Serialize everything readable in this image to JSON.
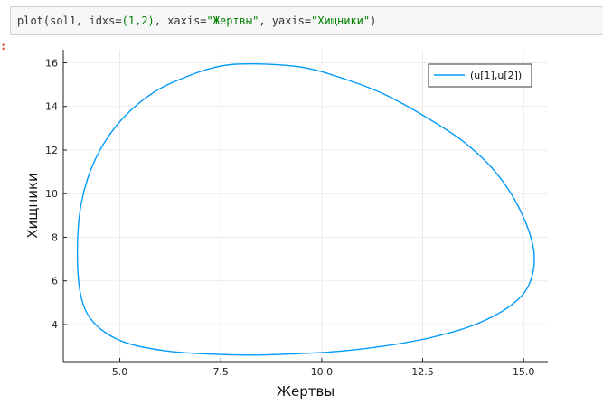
{
  "cell": {
    "in_prompt": "",
    "out_prompt": ":",
    "code_parts": [
      {
        "t": "plot(sol1, idxs=",
        "c": "kw"
      },
      {
        "t": "(1,2)",
        "c": "num"
      },
      {
        "t": ", xaxis=",
        "c": "kw"
      },
      {
        "t": "\"Жертвы\"",
        "c": "num"
      },
      {
        "t": ", yaxis=",
        "c": "kw"
      },
      {
        "t": "\"Хищники\"",
        "c": "num"
      },
      {
        "t": ")",
        "c": "kw"
      }
    ]
  },
  "chart_data": {
    "type": "line",
    "xlabel": "Жертвы",
    "ylabel": "Хищники",
    "x_ticks": [
      5.0,
      7.5,
      10.0,
      12.5,
      15.0
    ],
    "x_tick_labels": [
      "5.0",
      "7.5",
      "10.0",
      "12.5",
      "15.0"
    ],
    "y_ticks": [
      4,
      6,
      8,
      10,
      12,
      14,
      16
    ],
    "y_tick_labels": [
      "4",
      "6",
      "8",
      "10",
      "12",
      "14",
      "16"
    ],
    "xlim": [
      3.6,
      15.6
    ],
    "ylim": [
      2.3,
      16.6
    ],
    "grid": true,
    "legend_position": "top-right",
    "series": [
      {
        "name": "(u[1],u[2])",
        "color": "#009af9",
        "x": [
          8.3,
          9.5,
          10.5,
          11.5,
          12.5,
          13.5,
          14.3,
          14.9,
          15.25,
          15.15,
          14.7,
          13.8,
          12.7,
          11.5,
          10.3,
          9.2,
          8.3,
          7.2,
          6.1,
          5.1,
          4.4,
          4.05,
          3.95,
          4.05,
          4.4,
          5.0,
          5.8,
          6.7,
          7.5,
          8.3
        ],
        "y": [
          15.95,
          15.8,
          15.3,
          14.6,
          13.6,
          12.4,
          11.0,
          9.3,
          7.4,
          5.9,
          4.9,
          4.0,
          3.4,
          3.0,
          2.75,
          2.65,
          2.6,
          2.65,
          2.8,
          3.2,
          4.0,
          5.2,
          7.3,
          9.6,
          11.6,
          13.3,
          14.6,
          15.4,
          15.85,
          15.95
        ]
      }
    ]
  }
}
